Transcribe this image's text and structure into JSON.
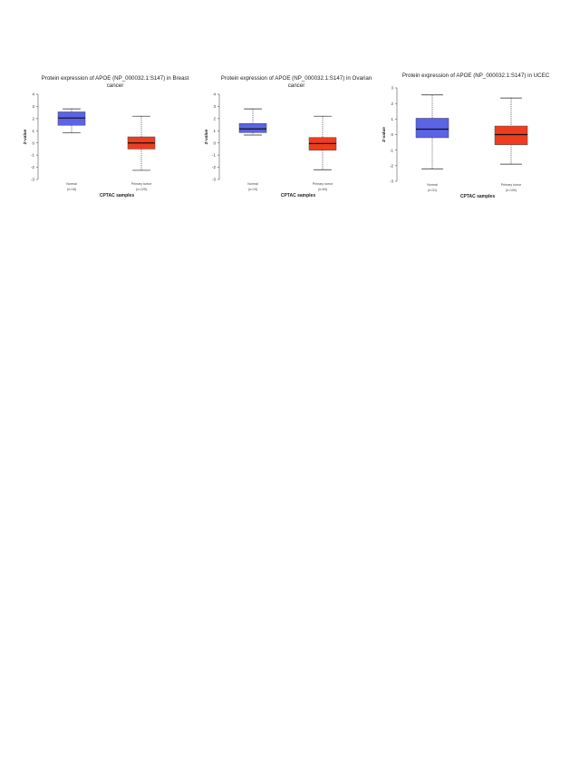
{
  "chart_data": [
    {
      "type": "box",
      "title_lines": [
        "Protein expression of APOE (NP_000032.1:S147) in Breast",
        "cancer"
      ],
      "ylabel": "Z-value",
      "xlabel": "CPTAC samples",
      "ylim": [
        -3,
        4
      ],
      "yticks": [
        "-3",
        "-2",
        "-1",
        "0",
        "1",
        "2",
        "3",
        "4"
      ],
      "boxes": [
        {
          "group": "Normal",
          "count": "(n=18)",
          "color": "#5b63e6",
          "whisker_low": 0.85,
          "q1": 1.45,
          "median": 2.05,
          "q3": 2.55,
          "whisker_high": 2.8
        },
        {
          "group": "Primary tumor",
          "count": "(n=125)",
          "color": "#ee3d1e",
          "whisker_low": -2.25,
          "q1": -0.5,
          "median": 0.0,
          "q3": 0.5,
          "whisker_high": 2.2
        }
      ]
    },
    {
      "type": "box",
      "title_lines": [
        "Protein expression of APOE (NP_000032.1:S147) in Ovarian",
        "cancer"
      ],
      "ylabel": "Z-value",
      "xlabel": "CPTAC samples",
      "ylim": [
        -3,
        4
      ],
      "yticks": [
        "-3",
        "-2",
        "-1",
        "0",
        "1",
        "2",
        "3",
        "4"
      ],
      "boxes": [
        {
          "group": "Normal",
          "count": "(n=19)",
          "color": "#5b63e6",
          "whisker_low": 0.65,
          "q1": 0.85,
          "median": 1.15,
          "q3": 1.6,
          "whisker_high": 2.8
        },
        {
          "group": "Primary tumor",
          "count": "(n=84)",
          "color": "#ee3d1e",
          "whisker_low": -2.2,
          "q1": -0.6,
          "median": -0.05,
          "q3": 0.45,
          "whisker_high": 2.2
        }
      ]
    },
    {
      "type": "box",
      "title_lines": [
        "Protein expression of APOE (NP_000032.1:S147) in UCEC"
      ],
      "ylabel": "Z-value",
      "xlabel": "CPTAC samples",
      "ylim": [
        -3,
        3
      ],
      "yticks": [
        "-3",
        "-2",
        "-1",
        "0",
        "1",
        "2",
        "3"
      ],
      "boxes": [
        {
          "group": "Normal",
          "count": "(n=31)",
          "color": "#5b63e6",
          "whisker_low": -2.2,
          "q1": -0.2,
          "median": 0.35,
          "q3": 1.05,
          "whisker_high": 2.55
        },
        {
          "group": "Primary tumor",
          "count": "(n=100)",
          "color": "#ee3d1e",
          "whisker_low": -1.9,
          "q1": -0.65,
          "median": 0.0,
          "q3": 0.55,
          "whisker_high": 2.35
        }
      ]
    }
  ]
}
